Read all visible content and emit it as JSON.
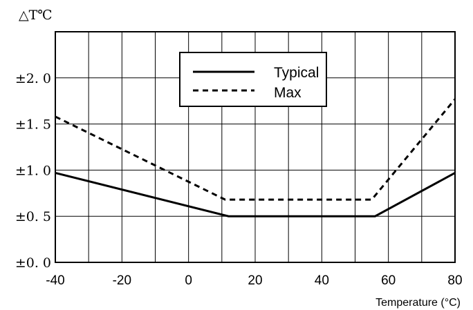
{
  "chart_data": {
    "type": "line",
    "ylabel": "△T℃",
    "xlabel": "Temperature (°C)",
    "xlim": [
      -40,
      80
    ],
    "ylim": [
      0,
      2.5
    ],
    "x_ticks": [
      "-40",
      "-20",
      "0",
      "20",
      "40",
      "60",
      "80"
    ],
    "y_ticks": [
      {
        "value": 0.0,
        "label": "±0. 0"
      },
      {
        "value": 0.5,
        "label": "±0. 5"
      },
      {
        "value": 1.0,
        "label": "±1. 0"
      },
      {
        "value": 1.5,
        "label": "±1. 5"
      },
      {
        "value": 2.0,
        "label": "±2. 0"
      }
    ],
    "grid": true,
    "legend_position": "top-center",
    "series": [
      {
        "name": "Typical",
        "style": "solid",
        "color": "#000000",
        "points": [
          [
            -40,
            0.97
          ],
          [
            12,
            0.5
          ],
          [
            56,
            0.5
          ],
          [
            80,
            0.97
          ]
        ]
      },
      {
        "name": "Max",
        "style": "dashed",
        "color": "#000000",
        "points": [
          [
            -40,
            1.58
          ],
          [
            11,
            0.68
          ],
          [
            55,
            0.68
          ],
          [
            80,
            1.77
          ]
        ]
      }
    ]
  }
}
